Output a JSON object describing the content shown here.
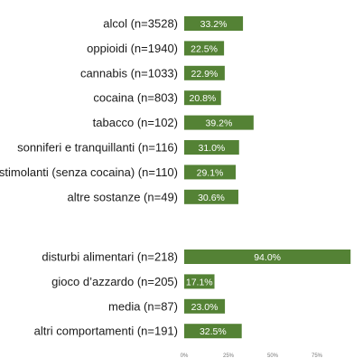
{
  "chart_data": {
    "type": "bar",
    "orientation": "horizontal",
    "xlim": [
      0,
      100
    ],
    "x_tick_labels": [
      "0%",
      "25%",
      "50%",
      "75%"
    ],
    "grid": false,
    "legend": "none",
    "bar_color": "#548235",
    "groups": [
      {
        "categories": [
          "alcol (n=3528)",
          "oppioidi (n=1940)",
          "cannabis (n=1033)",
          "cocaina (n=803)",
          "tabacco (n=102)",
          "sonniferi e tranquillanti (n=116)",
          "stimolanti (senza cocaina) (n=110)",
          "altre sostanze (n=49)"
        ],
        "values": [
          33.2,
          22.5,
          22.9,
          20.8,
          39.2,
          31.0,
          29.1,
          30.6
        ],
        "value_labels": [
          "33.2%",
          "22.5%",
          "22.9%",
          "20.8%",
          "39.2%",
          "31.0%",
          "29.1%",
          "30.6%"
        ]
      },
      {
        "categories": [
          "disturbi alimentari (n=218)",
          "gioco d’azzardo (n=205)",
          "media (n=87)",
          "altri comportamenti (n=191)"
        ],
        "values": [
          94.0,
          17.1,
          23.0,
          32.5
        ],
        "value_labels": [
          "94.0%",
          "17.1%",
          "23.0%",
          "32.5%"
        ]
      }
    ]
  }
}
